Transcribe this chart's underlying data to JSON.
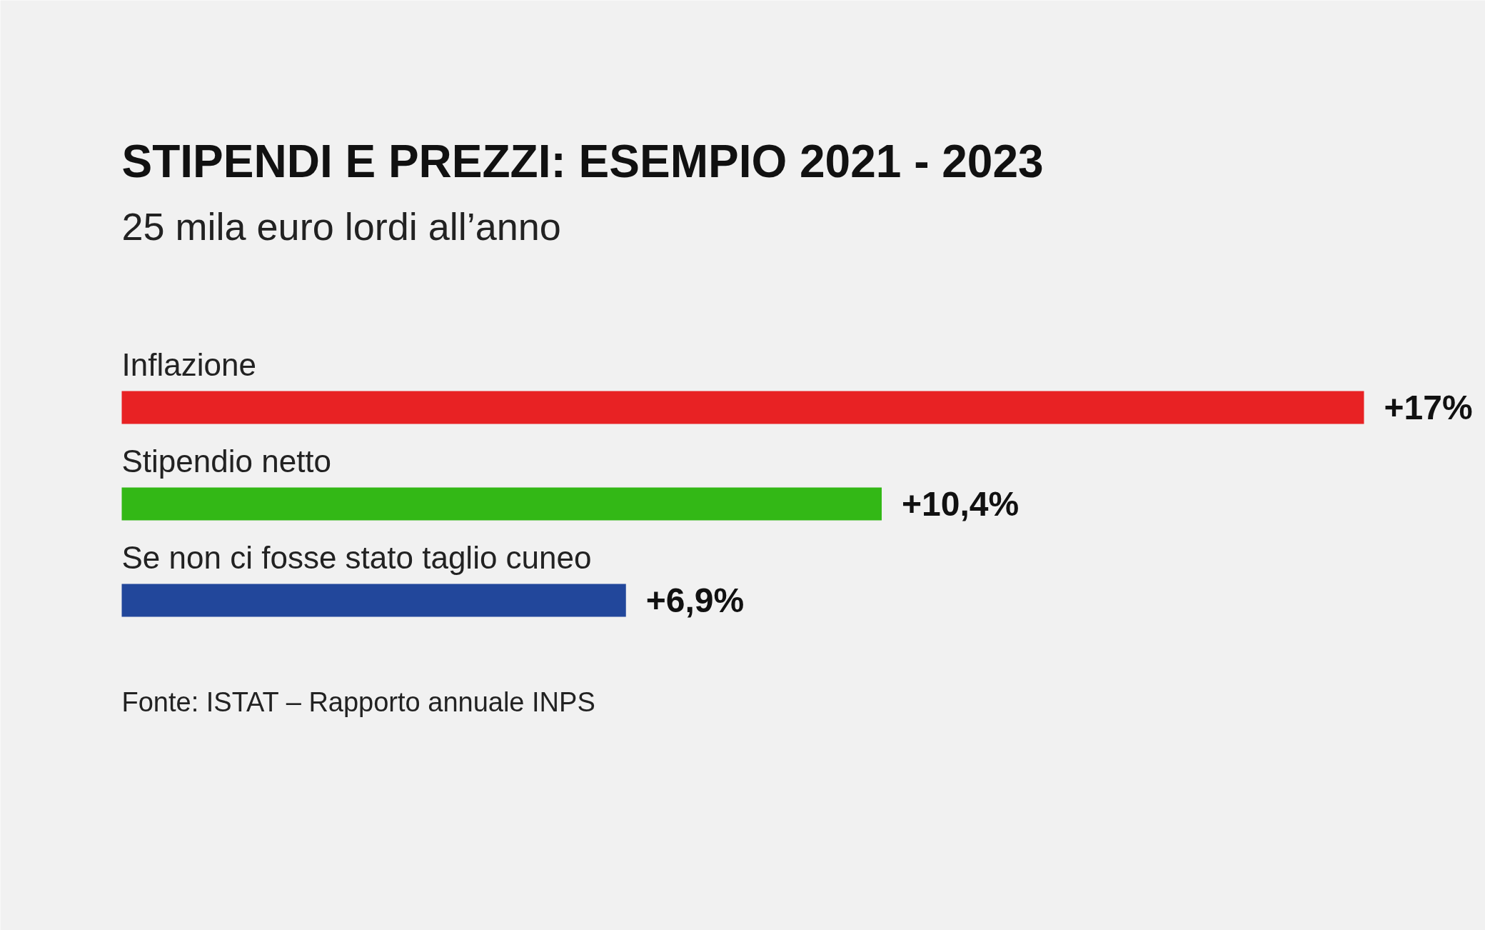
{
  "chart_data": {
    "type": "bar",
    "orientation": "horizontal",
    "title": "STIPENDI E PREZZI: ESEMPIO 2021 - 2023",
    "subtitle": "25 mila euro lordi all’anno",
    "categories": [
      "Inflazione",
      "Stipendio netto",
      "Se non ci fosse stato taglio cuneo"
    ],
    "values": [
      17,
      10.4,
      6.9
    ],
    "colors": [
      "#e82224",
      "#33b816",
      "#22479b"
    ],
    "value_labels": [
      "+17%",
      "+10,4%",
      "+6,9%"
    ],
    "annotations": [
      "Fonte: ISTAT – Rapporto annuale INPS"
    ]
  }
}
